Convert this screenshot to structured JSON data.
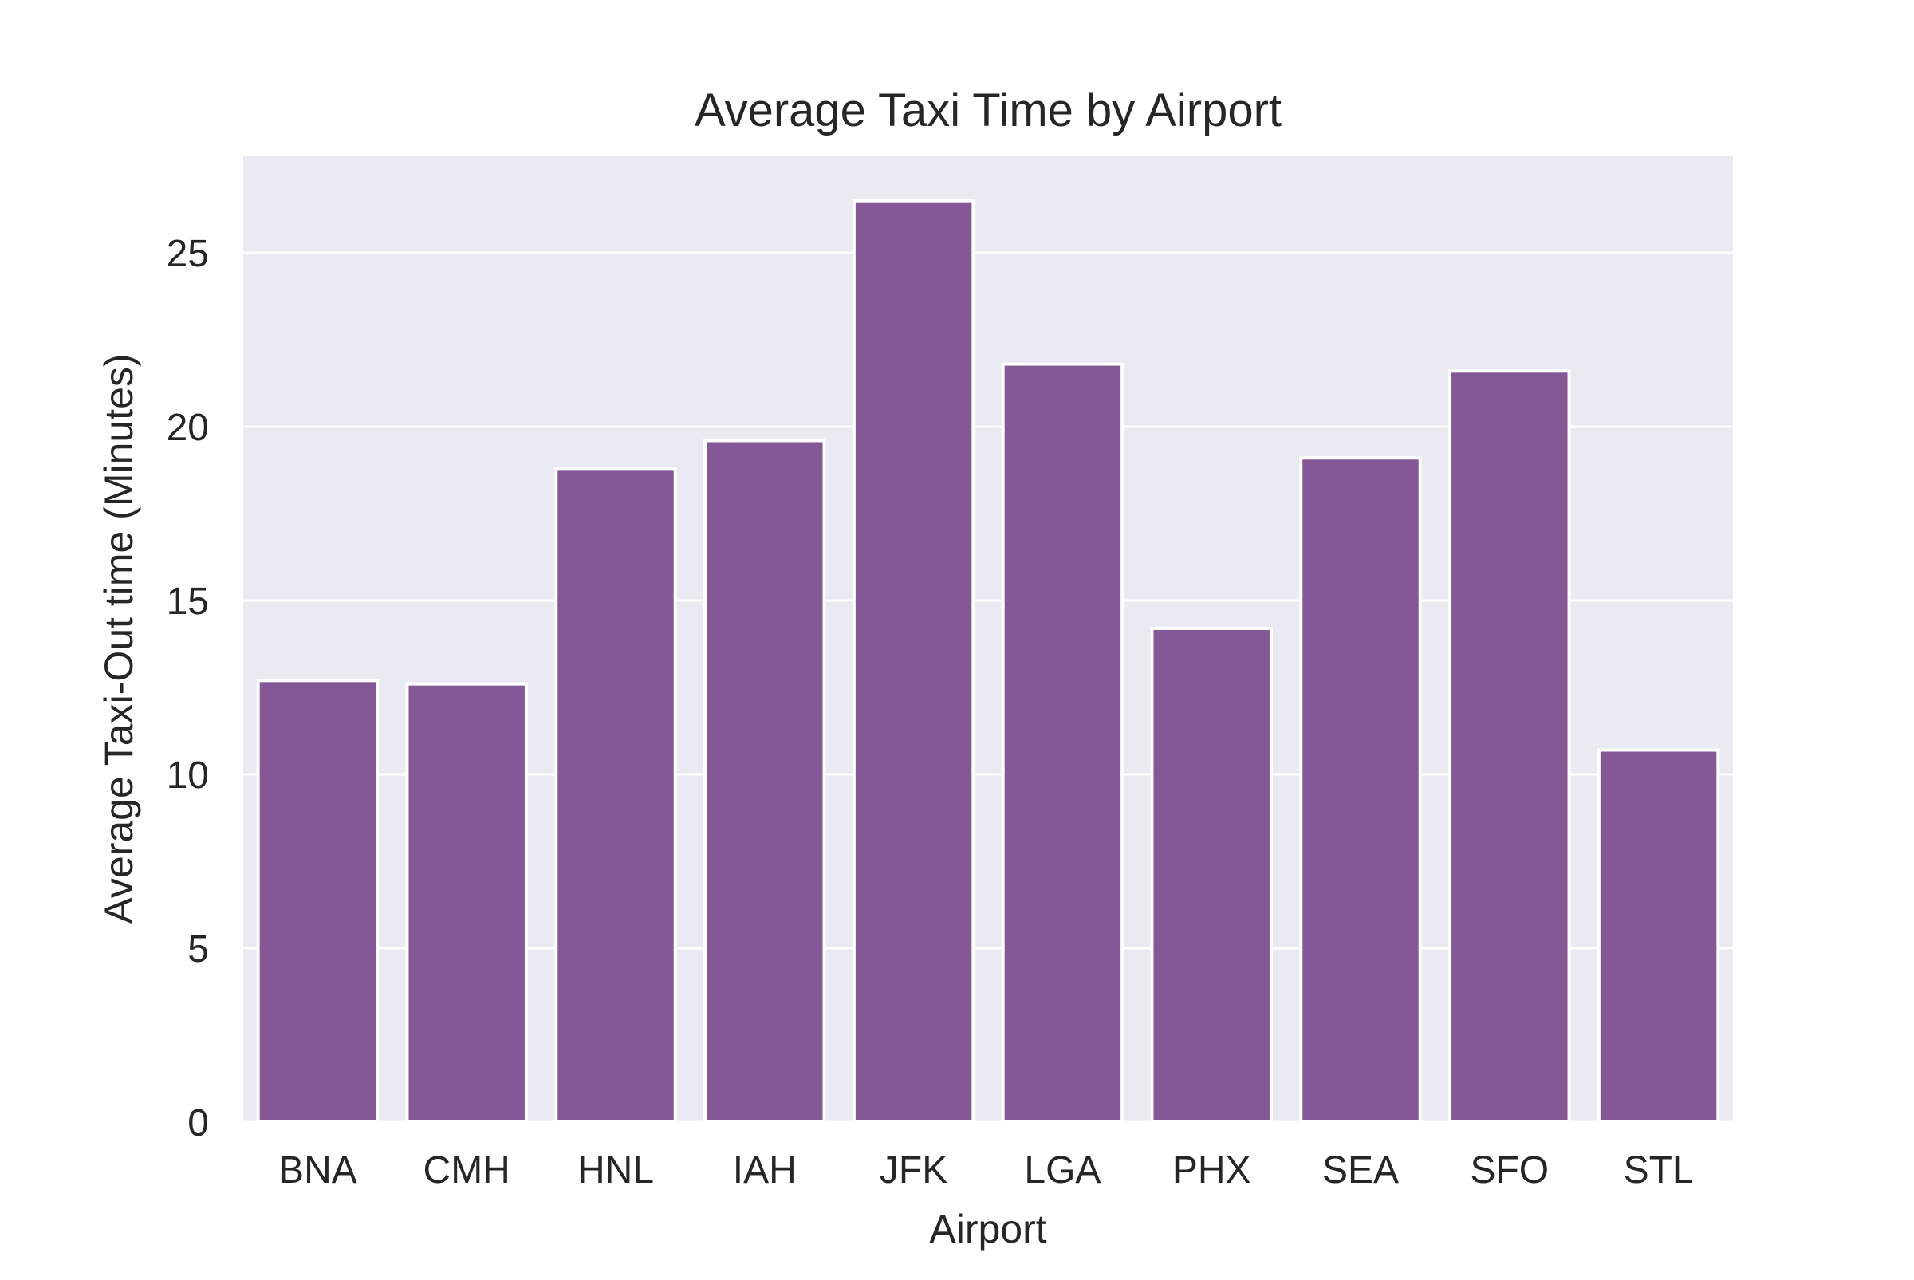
{
  "chart_data": {
    "type": "bar",
    "title": "Average Taxi Time by Airport",
    "xlabel": "Airport",
    "ylabel": "Average Taxi-Out time (Minutes)",
    "categories": [
      "BNA",
      "CMH",
      "HNL",
      "IAH",
      "JFK",
      "LGA",
      "PHX",
      "SEA",
      "SFO",
      "STL"
    ],
    "values": [
      12.7,
      12.6,
      18.8,
      19.6,
      26.5,
      21.8,
      14.2,
      19.1,
      21.6,
      10.7
    ],
    "ylim": [
      0,
      27.8
    ],
    "yticks": [
      0,
      5,
      10,
      15,
      20,
      25
    ],
    "grid": true,
    "legend": "none",
    "colors": {
      "bar": "#845896",
      "background": "#eaeaf2",
      "grid": "#ffffff"
    }
  }
}
